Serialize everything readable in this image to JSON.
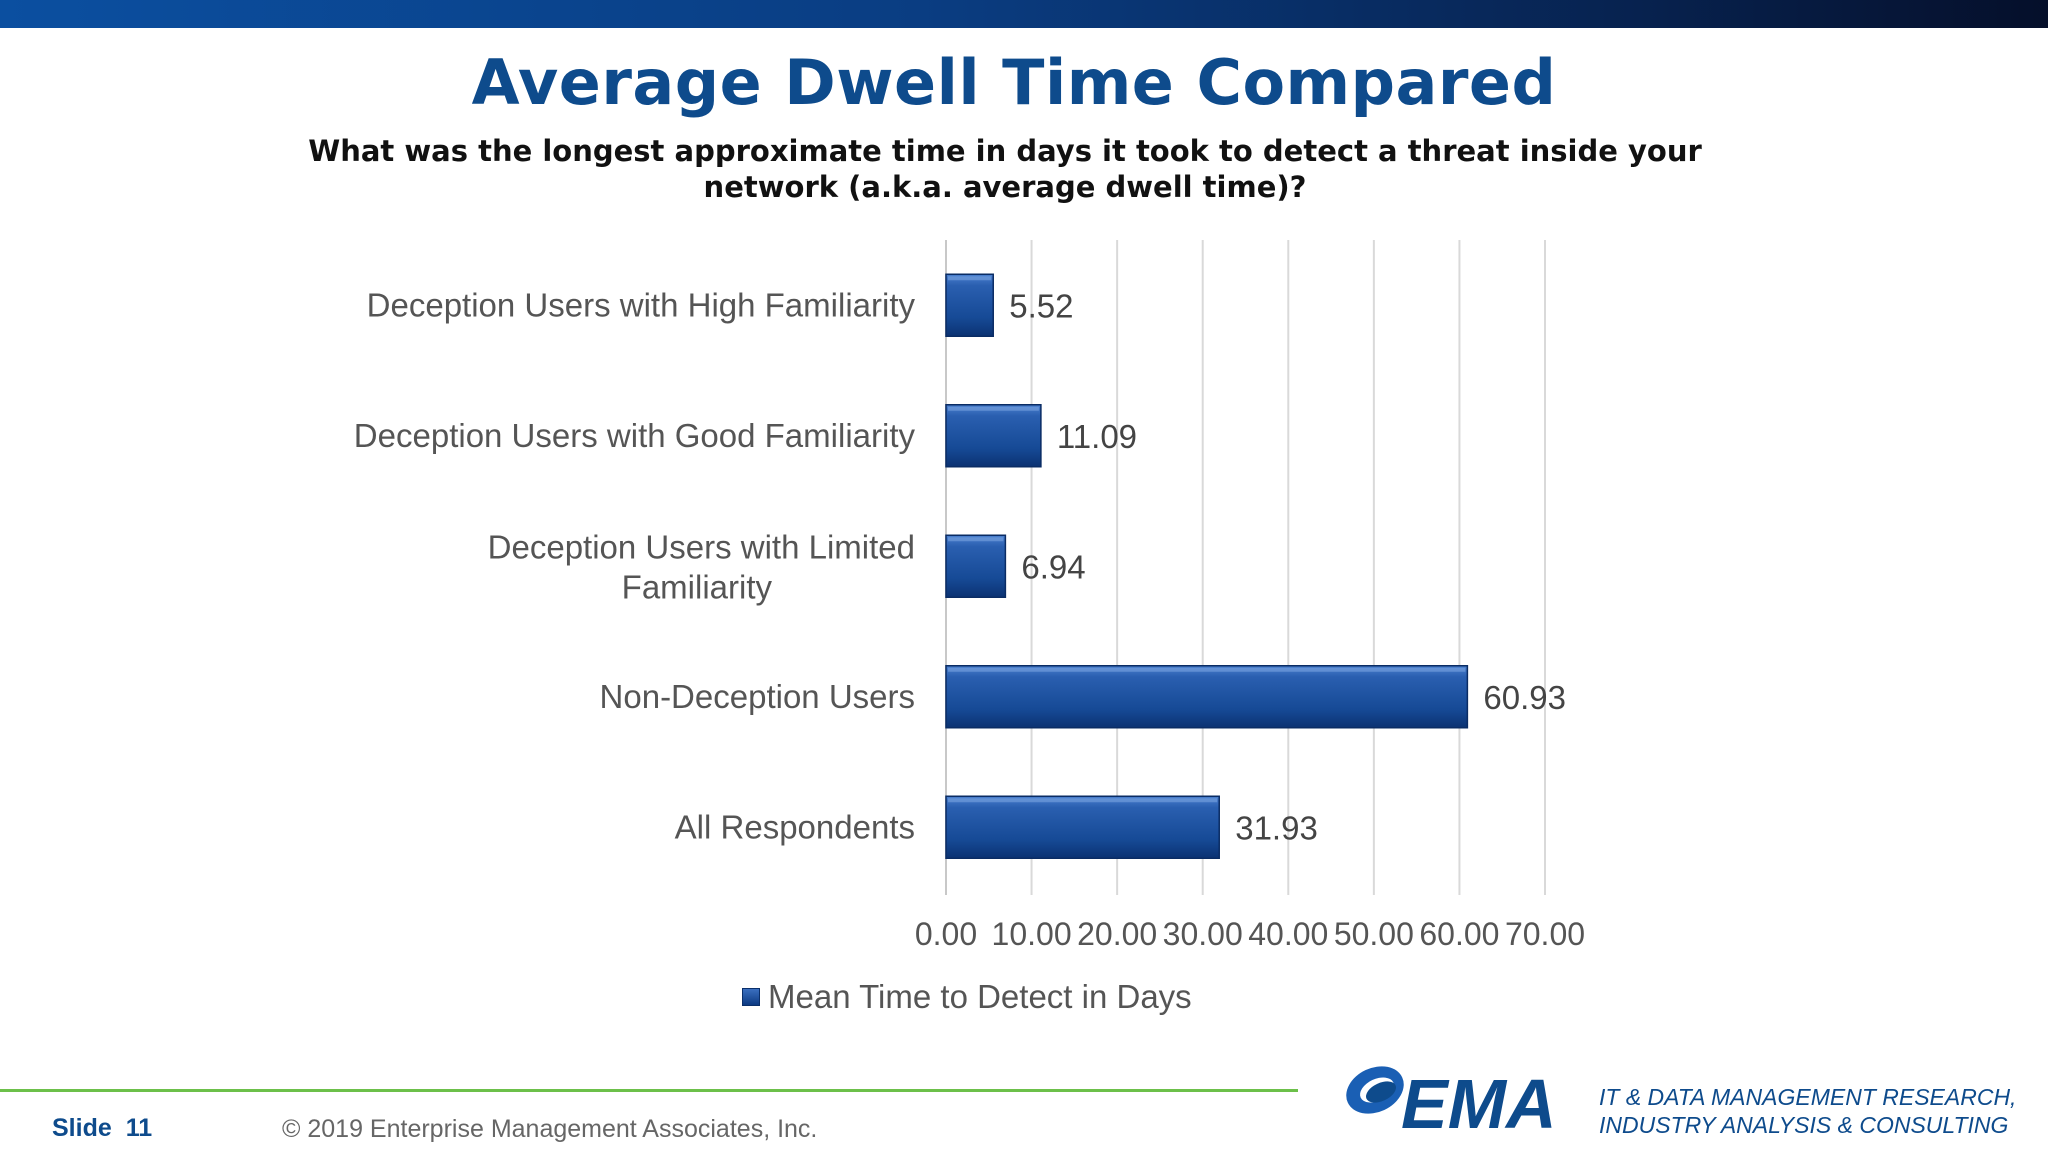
{
  "header": {
    "title": "Average Dwell Time Compared",
    "subtitle": "What was the longest approximate time in days it took to detect a threat inside your network (a.k.a. average dwell time)?"
  },
  "chart_data": {
    "type": "bar",
    "orientation": "horizontal",
    "categories": [
      "Deception Users with High Familiarity",
      "Deception Users with Good Familiarity",
      "Deception Users with Limited Familiarity",
      "Non-Deception Users",
      "All Respondents"
    ],
    "series": [
      {
        "name": "Mean Time to Detect in Days",
        "values": [
          5.52,
          11.09,
          6.94,
          60.93,
          31.93
        ]
      }
    ],
    "value_labels": [
      "5.52",
      "11.09",
      "6.94",
      "60.93",
      "31.93"
    ],
    "xlim": [
      0,
      70
    ],
    "xticks": [
      0,
      10,
      20,
      30,
      40,
      50,
      60,
      70
    ],
    "xtick_labels": [
      "0.00",
      "10.00",
      "20.00",
      "30.00",
      "40.00",
      "50.00",
      "60.00",
      "70.00"
    ],
    "grid": true,
    "legend_position": "bottom",
    "bar_color": "#1a4f9c"
  },
  "footer": {
    "slide_label": "Slide",
    "slide_number": "11",
    "copyright": "© 2019 Enterprise Management Associates, Inc.",
    "logo_text": "EMA",
    "tagline_line1": "IT & DATA MANAGEMENT RESEARCH,",
    "tagline_line2": "INDUSTRY ANALYSIS & CONSULTING"
  }
}
